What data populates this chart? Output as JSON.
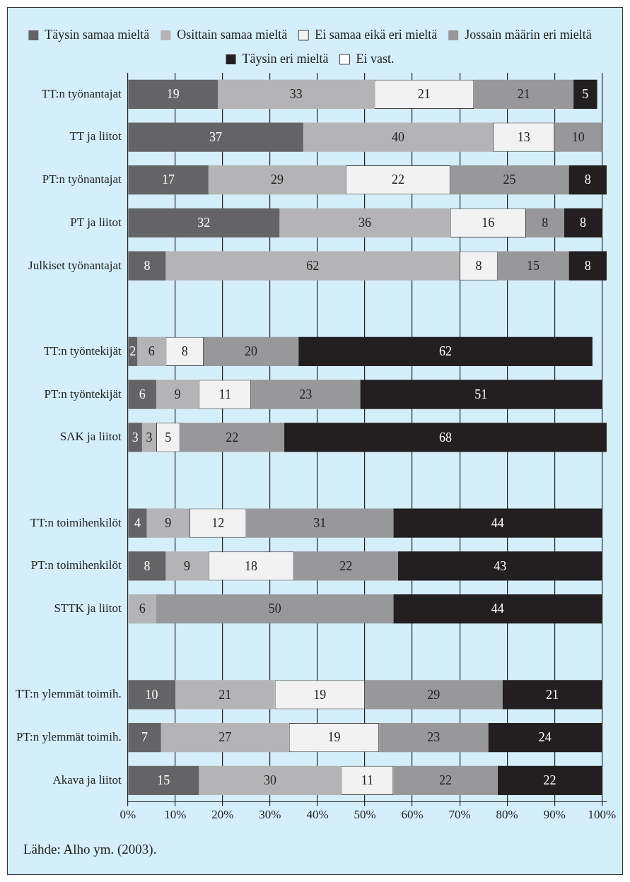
{
  "chart_data": {
    "type": "bar",
    "orientation": "horizontal",
    "stacked": true,
    "data_labels": true,
    "grid": "x",
    "legend": "top",
    "categories": [
      "TT:n työnantajat",
      "TT ja liitot",
      "PT:n työnantajat",
      "PT ja liitot",
      "Julkiset työnantajat",
      null,
      "TT:n työntekijät",
      "PT:n työntekijät",
      "SAK ja liitot",
      null,
      "TT:n toimihenkilöt",
      "PT:n toimihenkilöt",
      "STTK ja liitot",
      null,
      "TT:n ylemmät toimih.",
      "PT:n ylemmät toimih.",
      "Akava ja liitot"
    ],
    "series": [
      {
        "name": "Täysin samaa mieltä",
        "color": "#646466",
        "values": [
          19,
          37,
          17,
          32,
          8,
          null,
          2,
          6,
          3,
          null,
          4,
          8,
          null,
          null,
          10,
          7,
          15
        ]
      },
      {
        "name": "Osittain samaa mieltä",
        "color": "#b4b4b6",
        "values": [
          33,
          40,
          29,
          36,
          62,
          null,
          6,
          9,
          3,
          null,
          9,
          9,
          6,
          null,
          21,
          27,
          30
        ]
      },
      {
        "name": "Ei samaa eikä eri mieltä",
        "color": "#f2f2f2",
        "values": [
          21,
          13,
          22,
          16,
          8,
          null,
          8,
          11,
          5,
          null,
          12,
          18,
          null,
          null,
          19,
          19,
          11
        ]
      },
      {
        "name": "Jossain määrin eri mieltä",
        "color": "#98989b",
        "values": [
          21,
          10,
          25,
          8,
          15,
          null,
          20,
          23,
          22,
          null,
          31,
          22,
          50,
          null,
          29,
          23,
          22
        ]
      },
      {
        "name": "Täysin eri mieltä",
        "color": "#231f20",
        "values": [
          5,
          null,
          8,
          8,
          8,
          null,
          62,
          51,
          68,
          null,
          44,
          43,
          44,
          null,
          21,
          24,
          22
        ]
      },
      {
        "name": "Ei vast.",
        "color": "#ffffff",
        "values": [
          null,
          null,
          null,
          null,
          null,
          null,
          null,
          null,
          null,
          null,
          null,
          null,
          null,
          null,
          null,
          null,
          null
        ]
      }
    ],
    "xlim": [
      0,
      101
    ],
    "xticks": [
      {
        "value": 0,
        "label": "0%"
      },
      {
        "value": 10,
        "label": "10%"
      },
      {
        "value": 20,
        "label": "20%"
      },
      {
        "value": 30,
        "label": "30%"
      },
      {
        "value": 40,
        "label": "40%"
      },
      {
        "value": 50,
        "label": "50%"
      },
      {
        "value": 60,
        "label": "60%"
      },
      {
        "value": 70,
        "label": "70%"
      },
      {
        "value": 80,
        "label": "80%"
      },
      {
        "value": 90,
        "label": "90%"
      },
      {
        "value": 100,
        "label": "100%"
      }
    ],
    "annotations": [
      "Lähde: Alho ym. (2003)."
    ]
  }
}
